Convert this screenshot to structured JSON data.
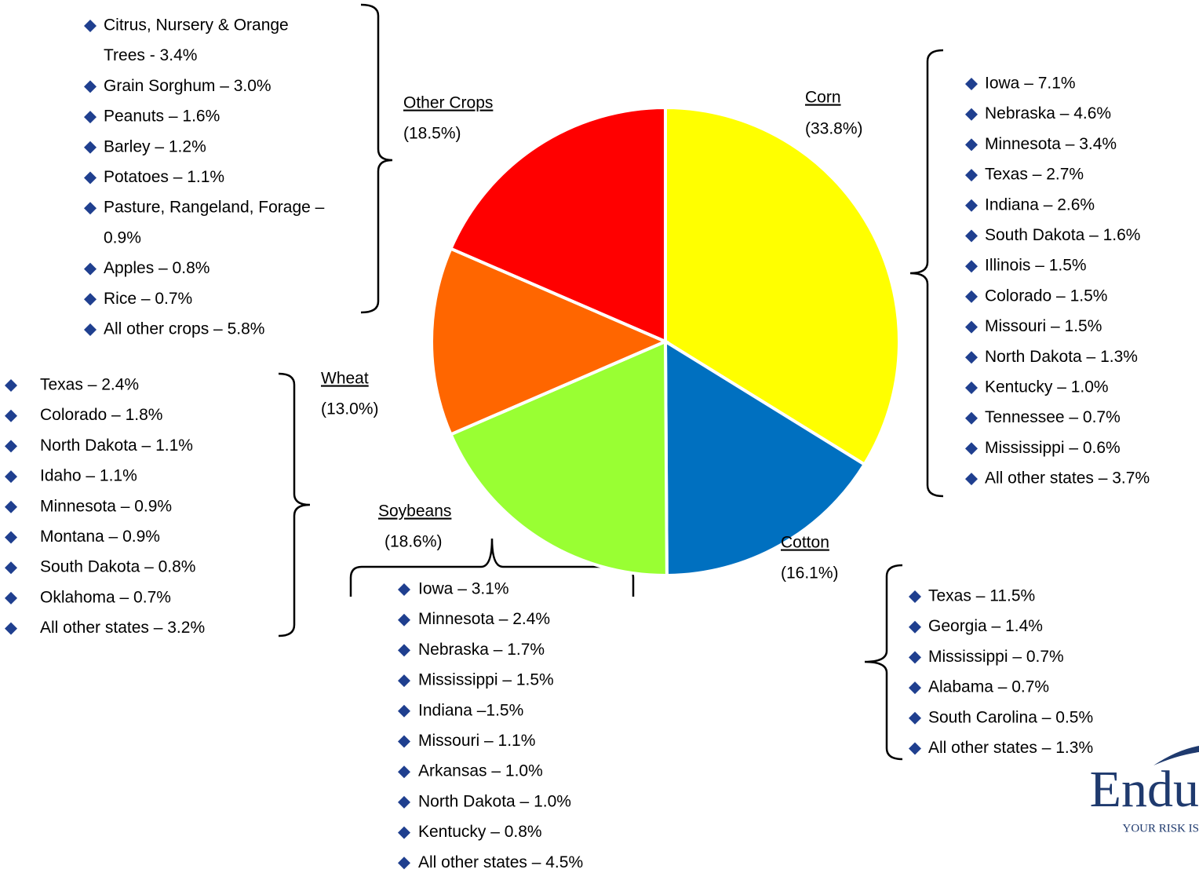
{
  "chart_data": {
    "type": "pie",
    "categories": [
      "Corn",
      "Cotton",
      "Soybeans",
      "Wheat",
      "Other Crops"
    ],
    "values": [
      33.8,
      16.1,
      18.6,
      13.0,
      18.5
    ],
    "value_labels": [
      "(33.8%)",
      "(16.1%)",
      "(18.6%)",
      "(13.0%)",
      "(18.5%)"
    ],
    "colors": [
      "#FFFF00",
      "#0070C0",
      "#99FF33",
      "#FF6600",
      "#FF0000"
    ],
    "details": [
      [
        "Iowa – 7.1%",
        "Nebraska – 4.6%",
        "Minnesota – 3.4%",
        "Texas – 2.7%",
        "Indiana – 2.6%",
        "South Dakota – 1.6%",
        "Illinois – 1.5%",
        "Colorado – 1.5%",
        "Missouri – 1.5%",
        "North Dakota – 1.3%",
        "Kentucky – 1.0%",
        "Tennessee – 0.7%",
        "Mississippi – 0.6%",
        "All other states – 3.7%"
      ],
      [
        "Texas – 11.5%",
        "Georgia – 1.4%",
        "Mississippi – 0.7%",
        "Alabama – 0.7%",
        "South Carolina – 0.5%",
        "All other states – 1.3%"
      ],
      [
        "Iowa – 3.1%",
        "Minnesota – 2.4%",
        "Nebraska – 1.7%",
        "Mississippi – 1.5%",
        "Indiana –1.5%",
        "Missouri – 1.1%",
        "Arkansas – 1.0%",
        "North Dakota – 1.0%",
        "Kentucky – 0.8%",
        "All other states – 4.5%"
      ],
      [
        "Texas – 2.4%",
        "Colorado – 1.8%",
        "North Dakota – 1.1%",
        "Idaho – 1.1%",
        "Minnesota – 0.9%",
        "Montana – 0.9%",
        "South Dakota – 0.8%",
        "Oklahoma – 0.7%",
        "All other states – 3.2%"
      ],
      [
        [
          "Citrus, Nursery & Orange",
          "Trees  - 3.4%"
        ],
        "Grain Sorghum – 3.0%",
        "Peanuts – 1.6%",
        "Barley – 1.2%",
        "Potatoes – 1.1%",
        [
          "Pasture, Rangeland, Forage –",
          "0.9%"
        ],
        "Apples – 0.8%",
        "Rice – 0.7%",
        "All other crops – 5.8%"
      ]
    ]
  },
  "logo": {
    "name": "Endu",
    "tagline": "YOUR RISK IS"
  }
}
